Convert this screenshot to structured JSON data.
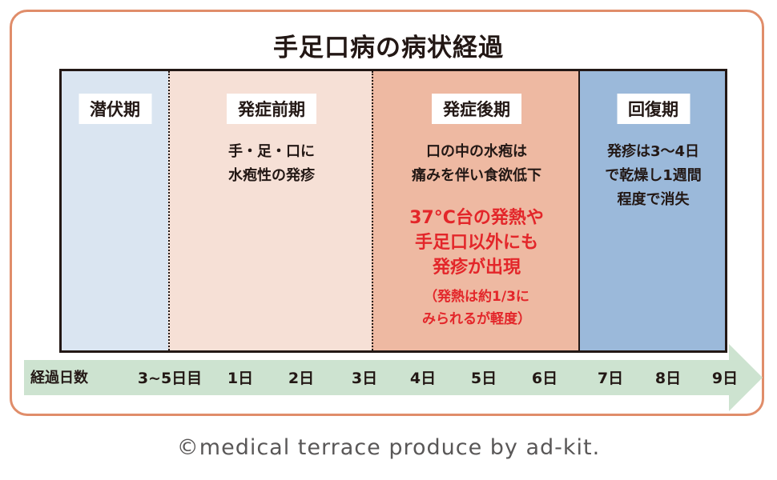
{
  "title": "手足口病の病状経過",
  "stages": [
    {
      "label": "潜伏期",
      "color": "#dae5f1",
      "desc": ""
    },
    {
      "label": "発症前期",
      "color": "#f6e0d6",
      "desc": "手・足・口に\n水疱性の発疹"
    },
    {
      "label": "発症後期",
      "color": "#eeb9a2",
      "desc": "口の中の水疱は\n痛みを伴い食欲低下",
      "desc_red": "37°C台の発熱や\n手足口以外にも\n発疹が出現",
      "desc_note": "（発熱は約1/3に\nみられるが軽度）"
    },
    {
      "label": "回復期",
      "color": "#9bb9da",
      "desc": "発疹は3～4日\nで乾燥し1週間\n程度で消失"
    }
  ],
  "timeline": {
    "axis_label": "経過日数",
    "ticks": [
      "3~5日目",
      "1日",
      "2日",
      "3日",
      "4日",
      "5日",
      "6日",
      "7日",
      "8日",
      "9日"
    ],
    "arrow_color": "#cde3d0"
  },
  "footer": "©medical terrace produce by ad-kit.",
  "colors": {
    "frame": "#e08d6a",
    "highlight": "#e3262a"
  }
}
